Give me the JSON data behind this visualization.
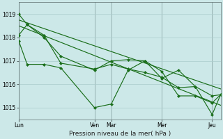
{
  "bg_color": "#cce8e8",
  "grid_color": "#aacccc",
  "line_color": "#1a6e1a",
  "title": "Pression niveau de la mer( hPa )",
  "ylim": [
    1014.5,
    1019.5
  ],
  "yticks": [
    1015,
    1016,
    1017,
    1018,
    1019
  ],
  "xlim": [
    0,
    24
  ],
  "day_labels": [
    "Lun",
    "Ven",
    "Mar",
    "Mer",
    "Jeu"
  ],
  "day_positions": [
    0,
    9,
    11,
    17,
    23
  ],
  "series1_x": [
    0,
    1,
    3,
    5,
    9,
    11,
    13,
    15,
    17,
    19,
    21,
    23,
    24
  ],
  "series1_y": [
    1019.0,
    1018.55,
    1018.1,
    1016.9,
    1016.65,
    1016.85,
    1016.65,
    1016.5,
    1016.3,
    1015.85,
    1015.9,
    1015.5,
    1015.55
  ],
  "series2_x": [
    0,
    1,
    3,
    5,
    9,
    11,
    13,
    15,
    17,
    19,
    21,
    23,
    24
  ],
  "series2_y": [
    1017.85,
    1016.85,
    1016.85,
    1016.7,
    1015.0,
    1015.15,
    1016.6,
    1017.0,
    1016.55,
    1015.5,
    1015.5,
    1015.2,
    1015.55
  ],
  "trend1_x": [
    0,
    24
  ],
  "trend1_y": [
    1018.75,
    1015.8
  ],
  "trend2_x": [
    0,
    24
  ],
  "trend2_y": [
    1018.5,
    1015.1
  ],
  "series3_x": [
    0,
    1,
    3,
    5,
    9,
    11,
    13,
    15,
    17,
    19,
    21,
    23,
    24
  ],
  "series3_y": [
    1018.1,
    1018.55,
    1018.0,
    1017.2,
    1016.6,
    1017.0,
    1017.05,
    1017.0,
    1016.25,
    1016.6,
    1015.9,
    1014.7,
    1015.55
  ]
}
